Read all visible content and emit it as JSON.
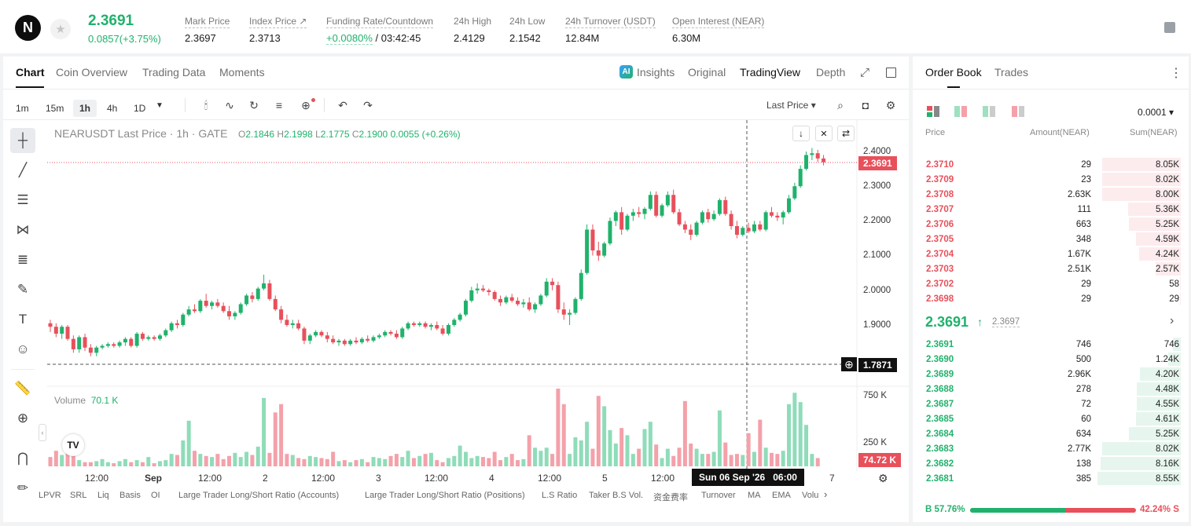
{
  "header": {
    "logo_text": "N",
    "last_price": "2.3691",
    "change": "0.0857(+3.75%)",
    "stats": [
      {
        "label": "Mark Price",
        "value": "2.3697"
      },
      {
        "label": "Index Price ↗",
        "value": "2.3713"
      },
      {
        "label": "Funding Rate/Countdown",
        "value": "/ 03:42:45",
        "value_accent": "+0.0080%"
      },
      {
        "label": "24h High",
        "value": "2.4129"
      },
      {
        "label": "24h Low",
        "value": "2.1542"
      },
      {
        "label": "24h Turnover (USDT)",
        "value": "12.84M"
      },
      {
        "label": "Open Interest (NEAR)",
        "value": "6.30M"
      }
    ]
  },
  "chart_tabs": [
    "Chart",
    "Coin Overview",
    "Trading Data",
    "Moments"
  ],
  "view_tabs": {
    "insights": "Insights",
    "original": "Original",
    "tradingview": "TradingView",
    "depth": "Depth"
  },
  "timeframes": [
    "1m",
    "15m",
    "1h",
    "4h",
    "1D"
  ],
  "active_timeframe": "1h",
  "price_type": "Last Price ▾",
  "legend": {
    "title": "NEARUSDT Last Price · 1h · GATE",
    "o_label": "O",
    "o": "2.1846",
    "h_label": "H",
    "h": "2.1998",
    "l_label": "L",
    "l": "2.1775",
    "c_label": "C",
    "c": "2.1900",
    "chg": "0.0055 (+0.26%)"
  },
  "volume": {
    "label": "Volume",
    "value": "70.1 K"
  },
  "price_axis": [
    "2.4000",
    "2.3000",
    "2.2000",
    "2.1000",
    "2.0000",
    "1.9000"
  ],
  "volume_axis": [
    "750 K",
    "250 K"
  ],
  "price_tags": {
    "last": "2.3691",
    "cross": "1.7871",
    "volume": "74.72 K"
  },
  "time_axis": [
    "12:00",
    "Sep",
    "12:00",
    "2",
    "12:00",
    "3",
    "12:00",
    "4",
    "12:00",
    "5",
    "12:00",
    "7"
  ],
  "crosshair_time": "Sun 06 Sep '26   06:00",
  "indicators": [
    "LPVR",
    "SRL",
    "Liq",
    "Basis",
    "OI",
    "Large Trader Long/Short Ratio (Accounts)",
    "Large Trader Long/Short Ratio (Positions)",
    "L.S Ratio",
    "Taker B.S Vol.",
    "资金费率",
    "Turnover",
    "MA",
    "EMA",
    "Volu"
  ],
  "colors": {
    "up": "#20b26c",
    "down": "#e8505b",
    "up_light": "#8fdcb9",
    "down_light": "#f4a1aa"
  },
  "chart_data": {
    "type": "candlestick",
    "symbol": "NEARUSDT",
    "interval": "1h",
    "ylim": [
      1.76,
      2.41
    ],
    "ohlc": [
      [
        1.905,
        1.915,
        1.88,
        1.895
      ],
      [
        1.895,
        1.905,
        1.865,
        1.875
      ],
      [
        1.875,
        1.9,
        1.86,
        1.895
      ],
      [
        1.895,
        1.9,
        1.855,
        1.86
      ],
      [
        1.86,
        1.87,
        1.82,
        1.83
      ],
      [
        1.83,
        1.87,
        1.82,
        1.865
      ],
      [
        1.865,
        1.875,
        1.825,
        1.835
      ],
      [
        1.835,
        1.845,
        1.81,
        1.82
      ],
      [
        1.82,
        1.84,
        1.81,
        1.835
      ],
      [
        1.835,
        1.845,
        1.83,
        1.84
      ],
      [
        1.84,
        1.85,
        1.835,
        1.845
      ],
      [
        1.845,
        1.85,
        1.835,
        1.84
      ],
      [
        1.84,
        1.855,
        1.835,
        1.85
      ],
      [
        1.85,
        1.865,
        1.84,
        1.86
      ],
      [
        1.86,
        1.865,
        1.835,
        1.84
      ],
      [
        1.84,
        1.88,
        1.835,
        1.875
      ],
      [
        1.875,
        1.88,
        1.855,
        1.86
      ],
      [
        1.86,
        1.87,
        1.855,
        1.865
      ],
      [
        1.865,
        1.87,
        1.855,
        1.86
      ],
      [
        1.86,
        1.875,
        1.855,
        1.87
      ],
      [
        1.87,
        1.89,
        1.865,
        1.885
      ],
      [
        1.885,
        1.91,
        1.88,
        1.905
      ],
      [
        1.905,
        1.915,
        1.89,
        1.9
      ],
      [
        1.9,
        1.935,
        1.895,
        1.93
      ],
      [
        1.93,
        1.955,
        1.925,
        1.945
      ],
      [
        1.945,
        1.96,
        1.935,
        1.94
      ],
      [
        1.94,
        1.975,
        1.935,
        1.97
      ],
      [
        1.97,
        1.99,
        1.95,
        1.955
      ],
      [
        1.955,
        1.97,
        1.945,
        1.965
      ],
      [
        1.965,
        1.975,
        1.95,
        1.955
      ],
      [
        1.955,
        1.965,
        1.935,
        1.94
      ],
      [
        1.94,
        1.955,
        1.915,
        1.925
      ],
      [
        1.925,
        1.94,
        1.915,
        1.935
      ],
      [
        1.935,
        1.965,
        1.93,
        1.96
      ],
      [
        1.96,
        1.99,
        1.955,
        1.985
      ],
      [
        1.985,
        1.995,
        1.965,
        1.975
      ],
      [
        1.975,
        2.01,
        1.97,
        2.005
      ],
      [
        2.005,
        2.045,
        2.0,
        2.02
      ],
      [
        2.02,
        2.03,
        1.97,
        1.975
      ],
      [
        1.975,
        1.985,
        1.94,
        1.945
      ],
      [
        1.945,
        1.955,
        1.905,
        1.915
      ],
      [
        1.915,
        1.93,
        1.895,
        1.9
      ],
      [
        1.9,
        1.915,
        1.89,
        1.905
      ],
      [
        1.905,
        1.915,
        1.885,
        1.89
      ],
      [
        1.89,
        1.895,
        1.845,
        1.855
      ],
      [
        1.855,
        1.875,
        1.845,
        1.87
      ],
      [
        1.87,
        1.885,
        1.865,
        1.88
      ],
      [
        1.88,
        1.885,
        1.865,
        1.87
      ],
      [
        1.87,
        1.88,
        1.85,
        1.86
      ],
      [
        1.86,
        1.87,
        1.845,
        1.85
      ],
      [
        1.85,
        1.86,
        1.84,
        1.855
      ],
      [
        1.855,
        1.86,
        1.84,
        1.845
      ],
      [
        1.845,
        1.86,
        1.84,
        1.855
      ],
      [
        1.855,
        1.865,
        1.845,
        1.85
      ],
      [
        1.85,
        1.865,
        1.845,
        1.86
      ],
      [
        1.86,
        1.87,
        1.85,
        1.855
      ],
      [
        1.855,
        1.87,
        1.85,
        1.865
      ],
      [
        1.865,
        1.875,
        1.86,
        1.87
      ],
      [
        1.87,
        1.885,
        1.865,
        1.88
      ],
      [
        1.88,
        1.885,
        1.87,
        1.875
      ],
      [
        1.875,
        1.885,
        1.86,
        1.865
      ],
      [
        1.865,
        1.895,
        1.86,
        1.89
      ],
      [
        1.89,
        1.91,
        1.885,
        1.905
      ],
      [
        1.905,
        1.91,
        1.895,
        1.9
      ],
      [
        1.9,
        1.91,
        1.895,
        1.905
      ],
      [
        1.905,
        1.91,
        1.89,
        1.895
      ],
      [
        1.895,
        1.905,
        1.885,
        1.9
      ],
      [
        1.9,
        1.91,
        1.885,
        1.89
      ],
      [
        1.89,
        1.9,
        1.87,
        1.875
      ],
      [
        1.875,
        1.905,
        1.87,
        1.9
      ],
      [
        1.9,
        1.92,
        1.895,
        1.915
      ],
      [
        1.915,
        1.935,
        1.91,
        1.93
      ],
      [
        1.93,
        1.975,
        1.925,
        1.97
      ],
      [
        1.97,
        2.01,
        1.965,
        2.0
      ],
      [
        2.0,
        2.02,
        1.99,
        2.005
      ],
      [
        2.005,
        2.015,
        1.995,
        2.0
      ],
      [
        2.0,
        2.005,
        1.985,
        1.995
      ],
      [
        1.995,
        2.0,
        1.97,
        1.975
      ],
      [
        1.975,
        1.985,
        1.955,
        1.965
      ],
      [
        1.965,
        1.985,
        1.96,
        1.98
      ],
      [
        1.98,
        1.99,
        1.965,
        1.97
      ],
      [
        1.97,
        1.98,
        1.955,
        1.96
      ],
      [
        1.96,
        1.975,
        1.95,
        1.965
      ],
      [
        1.965,
        1.98,
        1.94,
        1.945
      ],
      [
        1.945,
        1.965,
        1.935,
        1.96
      ],
      [
        1.96,
        1.99,
        1.955,
        1.985
      ],
      [
        1.985,
        2.035,
        1.98,
        2.025
      ],
      [
        2.025,
        2.035,
        2.0,
        2.015
      ],
      [
        2.015,
        2.025,
        1.935,
        1.945
      ],
      [
        1.945,
        1.965,
        1.915,
        1.93
      ],
      [
        1.93,
        1.945,
        1.9,
        1.935
      ],
      [
        1.935,
        1.98,
        1.93,
        1.975
      ],
      [
        1.975,
        2.06,
        1.97,
        2.05
      ],
      [
        2.05,
        2.19,
        2.045,
        2.175
      ],
      [
        2.175,
        2.19,
        2.1,
        2.115
      ],
      [
        2.115,
        2.14,
        2.085,
        2.1
      ],
      [
        2.1,
        2.14,
        2.095,
        2.135
      ],
      [
        2.135,
        2.21,
        2.13,
        2.2
      ],
      [
        2.2,
        2.23,
        2.185,
        2.225
      ],
      [
        2.225,
        2.24,
        2.16,
        2.175
      ],
      [
        2.175,
        2.22,
        2.17,
        2.215
      ],
      [
        2.215,
        2.235,
        2.2,
        2.225
      ],
      [
        2.225,
        2.24,
        2.21,
        2.22
      ],
      [
        2.22,
        2.24,
        2.205,
        2.235
      ],
      [
        2.235,
        2.285,
        2.23,
        2.275
      ],
      [
        2.275,
        2.285,
        2.21,
        2.215
      ],
      [
        2.215,
        2.25,
        2.21,
        2.245
      ],
      [
        2.245,
        2.285,
        2.24,
        2.275
      ],
      [
        2.275,
        2.29,
        2.22,
        2.225
      ],
      [
        2.225,
        2.235,
        2.185,
        2.19
      ],
      [
        2.19,
        2.2,
        2.165,
        2.175
      ],
      [
        2.175,
        2.19,
        2.145,
        2.16
      ],
      [
        2.16,
        2.2,
        2.155,
        2.195
      ],
      [
        2.195,
        2.23,
        2.19,
        2.225
      ],
      [
        2.225,
        2.235,
        2.195,
        2.205
      ],
      [
        2.205,
        2.23,
        2.2,
        2.22
      ],
      [
        2.22,
        2.265,
        2.215,
        2.26
      ],
      [
        2.26,
        2.27,
        2.215,
        2.22
      ],
      [
        2.22,
        2.23,
        2.175,
        2.185
      ],
      [
        2.185,
        2.2,
        2.15,
        2.16
      ],
      [
        2.16,
        2.185,
        2.155,
        2.18
      ],
      [
        2.18,
        2.195,
        2.165,
        2.17
      ],
      [
        2.17,
        2.2,
        2.165,
        2.19
      ],
      [
        2.19,
        2.2,
        2.17,
        2.175
      ],
      [
        2.175,
        2.23,
        2.17,
        2.225
      ],
      [
        2.225,
        2.24,
        2.21,
        2.215
      ],
      [
        2.215,
        2.225,
        2.2,
        2.21
      ],
      [
        2.21,
        2.23,
        2.19,
        2.225
      ],
      [
        2.225,
        2.275,
        2.22,
        2.265
      ],
      [
        2.265,
        2.31,
        2.26,
        2.3
      ],
      [
        2.3,
        2.36,
        2.295,
        2.35
      ],
      [
        2.35,
        2.4,
        2.345,
        2.39
      ],
      [
        2.39,
        2.41,
        2.375,
        2.395
      ],
      [
        2.395,
        2.405,
        2.37,
        2.38
      ],
      [
        2.38,
        2.39,
        2.36,
        2.369
      ]
    ],
    "volume": [
      90,
      150,
      110,
      260,
      120,
      60,
      40,
      40,
      50,
      70,
      40,
      30,
      50,
      70,
      40,
      60,
      40,
      90,
      30,
      50,
      60,
      120,
      110,
      250,
      440,
      150,
      120,
      100,
      90,
      120,
      70,
      100,
      130,
      90,
      140,
      110,
      190,
      660,
      130,
      520,
      600,
      120,
      110,
      80,
      70,
      100,
      90,
      80,
      70,
      140,
      50,
      60,
      40,
      60,
      70,
      40,
      90,
      80,
      70,
      100,
      120,
      90,
      150,
      80,
      100,
      120,
      130,
      60,
      40,
      80,
      100,
      200,
      140,
      80,
      100,
      90,
      80,
      140,
      60,
      90,
      120,
      60,
      70,
      300,
      180,
      150,
      180,
      120,
      750,
      600,
      120,
      280,
      250,
      430,
      170,
      680,
      580,
      350,
      220,
      370,
      300,
      120,
      170,
      360,
      430,
      210,
      80,
      170,
      100,
      180,
      630,
      220,
      170,
      120,
      120,
      140,
      540,
      230,
      110,
      120,
      110,
      320,
      140,
      450,
      180,
      130,
      120,
      150,
      600,
      710,
      620,
      400,
      120,
      80
    ]
  },
  "orderbook": {
    "tabs": [
      "Order Book",
      "Trades"
    ],
    "precision": "0.0001 ▾",
    "headers": [
      "Price",
      "Amount(NEAR)",
      "Sum(NEAR)"
    ],
    "asks": [
      {
        "price": "2.3710",
        "amount": "29",
        "sum": "8.05K",
        "depth": 0.94
      },
      {
        "price": "2.3709",
        "amount": "23",
        "sum": "8.02K",
        "depth": 0.94
      },
      {
        "price": "2.3708",
        "amount": "2.63K",
        "sum": "8.00K",
        "depth": 0.94
      },
      {
        "price": "2.3707",
        "amount": "111",
        "sum": "5.36K",
        "depth": 0.63
      },
      {
        "price": "2.3706",
        "amount": "663",
        "sum": "5.25K",
        "depth": 0.62
      },
      {
        "price": "2.3705",
        "amount": "348",
        "sum": "4.59K",
        "depth": 0.54
      },
      {
        "price": "2.3704",
        "amount": "1.67K",
        "sum": "4.24K",
        "depth": 0.5
      },
      {
        "price": "2.3703",
        "amount": "2.51K",
        "sum": "2.57K",
        "depth": 0.3
      },
      {
        "price": "2.3702",
        "amount": "29",
        "sum": "58",
        "depth": 0.01
      },
      {
        "price": "2.3698",
        "amount": "29",
        "sum": "29",
        "depth": 0.01
      }
    ],
    "mid_price": "2.3691",
    "mid_arrow": "↑",
    "mid_mark": "2.3697",
    "bids": [
      {
        "price": "2.3691",
        "amount": "746",
        "sum": "746",
        "depth": 0.09
      },
      {
        "price": "2.3690",
        "amount": "500",
        "sum": "1.24K",
        "depth": 0.15
      },
      {
        "price": "2.3689",
        "amount": "2.96K",
        "sum": "4.20K",
        "depth": 0.49
      },
      {
        "price": "2.3688",
        "amount": "278",
        "sum": "4.48K",
        "depth": 0.53
      },
      {
        "price": "2.3687",
        "amount": "72",
        "sum": "4.55K",
        "depth": 0.53
      },
      {
        "price": "2.3685",
        "amount": "60",
        "sum": "4.61K",
        "depth": 0.54
      },
      {
        "price": "2.3684",
        "amount": "634",
        "sum": "5.25K",
        "depth": 0.62
      },
      {
        "price": "2.3683",
        "amount": "2.77K",
        "sum": "8.02K",
        "depth": 0.94
      },
      {
        "price": "2.3682",
        "amount": "138",
        "sum": "8.16K",
        "depth": 0.96
      },
      {
        "price": "2.3681",
        "amount": "385",
        "sum": "8.55K",
        "depth": 1.0
      }
    ],
    "buy_ratio": "B 57.76%",
    "sell_ratio": "42.24% S",
    "buy_fraction": 0.5776
  }
}
